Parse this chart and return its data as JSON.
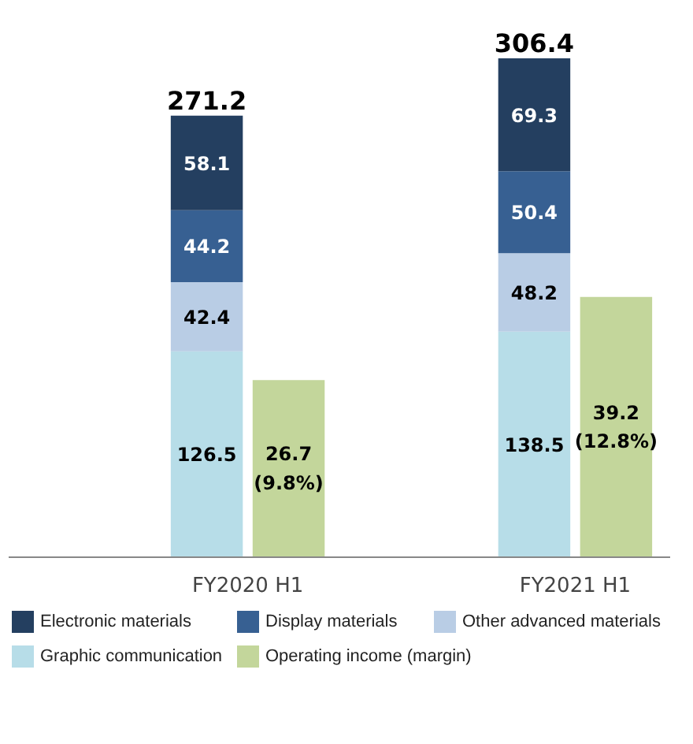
{
  "chart_data": {
    "type": "bar",
    "stacked": true,
    "categories": [
      "FY2020 H1",
      "FY2021 H1"
    ],
    "series": [
      {
        "name": "Graphic communication",
        "color": "#b7dde8",
        "values": [
          126.5,
          138.5
        ]
      },
      {
        "name": "Other advanced materials",
        "color": "#b9cde5",
        "values": [
          42.4,
          48.2
        ]
      },
      {
        "name": "Display materials",
        "color": "#376092",
        "values": [
          44.2,
          50.4
        ]
      },
      {
        "name": "Electronic materials",
        "color": "#243f60",
        "values": [
          58.1,
          69.3
        ]
      },
      {
        "name": "Operating income (margin)",
        "color": "#c3d69b",
        "values": [
          26.7,
          39.2
        ],
        "axis": "y2",
        "value_labels": [
          "26.7\n(9.8%)",
          "39.2\n(12.8%)"
        ]
      }
    ],
    "totals": [
      "271.2",
      "306.4"
    ],
    "data_labels": true,
    "tick_labels": "x",
    "grid": false,
    "legend": "bottom"
  }
}
